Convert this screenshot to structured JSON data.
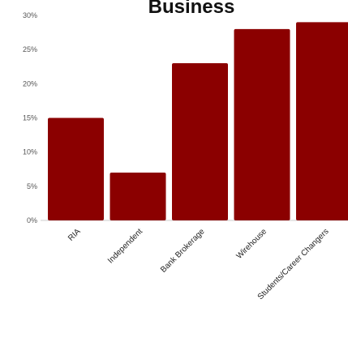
{
  "chart_data": {
    "type": "bar",
    "title": "Business",
    "categories": [
      "RIA",
      "Independent",
      "Bank Brokerage",
      "Wirehouse",
      "Students/Career Changers"
    ],
    "values": [
      15,
      7,
      23,
      28,
      29
    ],
    "ylim": [
      0,
      30
    ],
    "yticks": [
      "0%",
      "5%",
      "10%",
      "15%",
      "20%",
      "25%",
      "30%"
    ],
    "bar_color": "#8b0000",
    "grid": false,
    "legend": "none"
  }
}
